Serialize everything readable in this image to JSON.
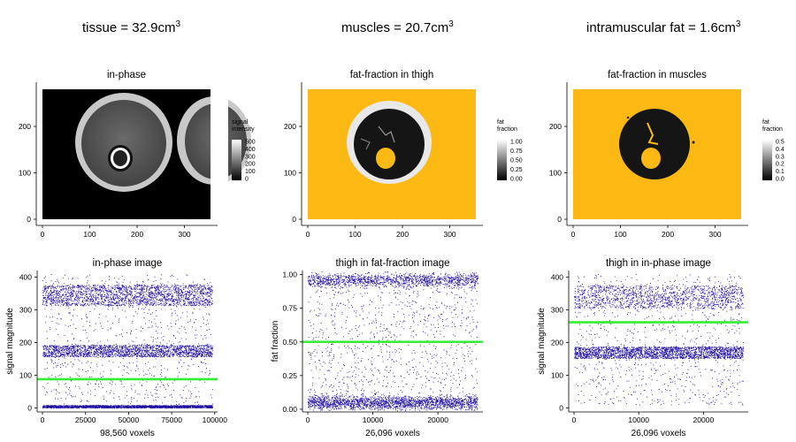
{
  "headers": [
    {
      "text": "tissue = 32.9cm",
      "sup": "3"
    },
    {
      "text": "muscles = 20.7cm",
      "sup": "3"
    },
    {
      "text": "intramuscular fat = 1.6cm",
      "sup": "3"
    }
  ],
  "colors": {
    "fill_orange": "#FDB913",
    "scatter_point": "#1E0FA0",
    "threshold_line": "#33EE33",
    "image_bg": "#000000"
  },
  "chart_data": [
    {
      "type": "heatmap",
      "panel": "in-phase",
      "title": "in-phase",
      "xlim": [
        0,
        355
      ],
      "ylim": [
        0,
        280
      ],
      "x_ticks": [
        0,
        100,
        200,
        300
      ],
      "y_ticks": [
        0,
        100,
        200
      ],
      "legend": {
        "title": [
          "signal",
          "intensity"
        ],
        "ticks": [
          "500",
          "400",
          "300",
          "200",
          "100",
          "0"
        ],
        "gradient": [
          "#ffffff",
          "#000000"
        ],
        "placement": "right"
      }
    },
    {
      "type": "heatmap",
      "panel": "fat-fraction in thigh",
      "title": "fat-fraction in thigh",
      "xlim": [
        0,
        355
      ],
      "ylim": [
        0,
        280
      ],
      "x_ticks": [
        0,
        100,
        200,
        300
      ],
      "y_ticks": [
        0,
        100,
        200
      ],
      "legend": {
        "title": [
          "fat",
          "fraction"
        ],
        "ticks": [
          "1.00",
          "0.75",
          "0.50",
          "0.25",
          "0.00"
        ],
        "gradient": [
          "#ffffff",
          "#000000"
        ],
        "placement": "right"
      }
    },
    {
      "type": "heatmap",
      "panel": "fat-fraction in muscles",
      "title": "fat-fraction in muscles",
      "xlim": [
        0,
        355
      ],
      "ylim": [
        0,
        280
      ],
      "x_ticks": [
        0,
        100,
        200,
        300
      ],
      "y_ticks": [
        0,
        100,
        200
      ],
      "legend": {
        "title": [
          "fat",
          "fraction"
        ],
        "ticks": [
          "0.5",
          "0.4",
          "0.3",
          "0.2",
          "0.1",
          "0.0"
        ],
        "gradient": [
          "#ffffff",
          "#000000"
        ],
        "placement": "right"
      }
    },
    {
      "type": "scatter",
      "title": "in-phase image",
      "xlabel": "98,560 voxels",
      "ylabel": "signal magnitude",
      "xlim": [
        0,
        98560
      ],
      "ylim": [
        -12,
        420
      ],
      "x_ticks": [
        0,
        25000,
        50000,
        75000,
        100000
      ],
      "y_ticks": [
        0,
        100,
        200,
        300,
        400
      ],
      "threshold": 88,
      "bands": [
        {
          "center": 345,
          "spread": 32,
          "share": 0.3
        },
        {
          "center": 175,
          "spread": 18,
          "share": 0.28
        },
        {
          "center": 5,
          "spread": 4,
          "share": 0.3
        },
        {
          "center": 210,
          "spread": 200,
          "share": 0.12
        }
      ]
    },
    {
      "type": "scatter",
      "title": "thigh in fat-fraction image",
      "xlabel": "26,096 voxels",
      "ylabel": "fat fraction",
      "xlim": [
        0,
        26096
      ],
      "ylim": [
        -0.02,
        1.03
      ],
      "x_ticks": [
        0,
        10000,
        20000
      ],
      "y_ticks": [
        0.0,
        0.25,
        0.5,
        0.75,
        1.0
      ],
      "y_tick_labels": [
        "0.00",
        "0.25",
        "0.50",
        "0.75",
        "1.00"
      ],
      "threshold": 0.5,
      "bands": [
        {
          "center": 0.96,
          "spread": 0.025,
          "share": 0.3
        },
        {
          "center": 0.05,
          "spread": 0.025,
          "share": 0.45
        },
        {
          "center": 0.5,
          "spread": 0.5,
          "share": 0.25
        }
      ]
    },
    {
      "type": "scatter",
      "title": "thigh in in-phase image",
      "xlabel": "26,096 voxels",
      "ylabel": "signal magnitude",
      "xlim": [
        0,
        26096
      ],
      "ylim": [
        -12,
        420
      ],
      "x_ticks": [
        0,
        10000,
        20000
      ],
      "y_ticks": [
        0,
        100,
        200,
        300,
        400
      ],
      "threshold": 262,
      "bands": [
        {
          "center": 340,
          "spread": 35,
          "share": 0.3
        },
        {
          "center": 170,
          "spread": 18,
          "share": 0.5
        },
        {
          "center": 210,
          "spread": 200,
          "share": 0.2
        }
      ]
    }
  ]
}
